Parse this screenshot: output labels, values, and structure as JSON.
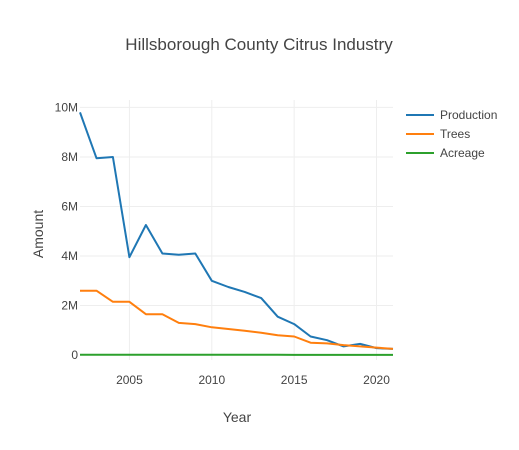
{
  "chart_data": {
    "type": "line",
    "title": "Hillsborough County Citrus Industry",
    "xlabel": "Year",
    "ylabel": "Amount",
    "xlim": [
      2002,
      2021
    ],
    "ylim": [
      -200000,
      10300000
    ],
    "x_ticks": [
      2005,
      2010,
      2015,
      2020
    ],
    "y_ticks": [
      0,
      2000000,
      4000000,
      6000000,
      8000000,
      10000000
    ],
    "y_tick_labels": [
      "0",
      "2M",
      "4M",
      "6M",
      "8M",
      "10M"
    ],
    "grid": true,
    "legend_position": "top-right",
    "x": [
      2002,
      2003,
      2004,
      2005,
      2006,
      2007,
      2008,
      2009,
      2010,
      2011,
      2012,
      2013,
      2014,
      2015,
      2016,
      2017,
      2018,
      2019,
      2020,
      2021
    ],
    "series": [
      {
        "name": "Production",
        "color": "#1f77b4",
        "values": [
          9800000,
          7950000,
          8000000,
          3950000,
          5250000,
          4100000,
          4050000,
          4100000,
          3000000,
          2750000,
          2550000,
          2300000,
          1550000,
          1250000,
          750000,
          600000,
          350000,
          450000,
          280000,
          250000
        ]
      },
      {
        "name": "Trees",
        "color": "#ff7f0e",
        "values": [
          2600000,
          2600000,
          2150000,
          2150000,
          1650000,
          1650000,
          1300000,
          1250000,
          1120000,
          1050000,
          980000,
          900000,
          800000,
          750000,
          500000,
          470000,
          400000,
          350000,
          300000,
          250000
        ]
      },
      {
        "name": "Acreage",
        "color": "#2ca02c",
        "values": [
          15000,
          14500,
          14000,
          13500,
          12500,
          12000,
          11000,
          10500,
          10000,
          9500,
          9000,
          8500,
          8000,
          7500,
          7000,
          6500,
          6000,
          5500,
          5000,
          4500
        ]
      }
    ]
  }
}
